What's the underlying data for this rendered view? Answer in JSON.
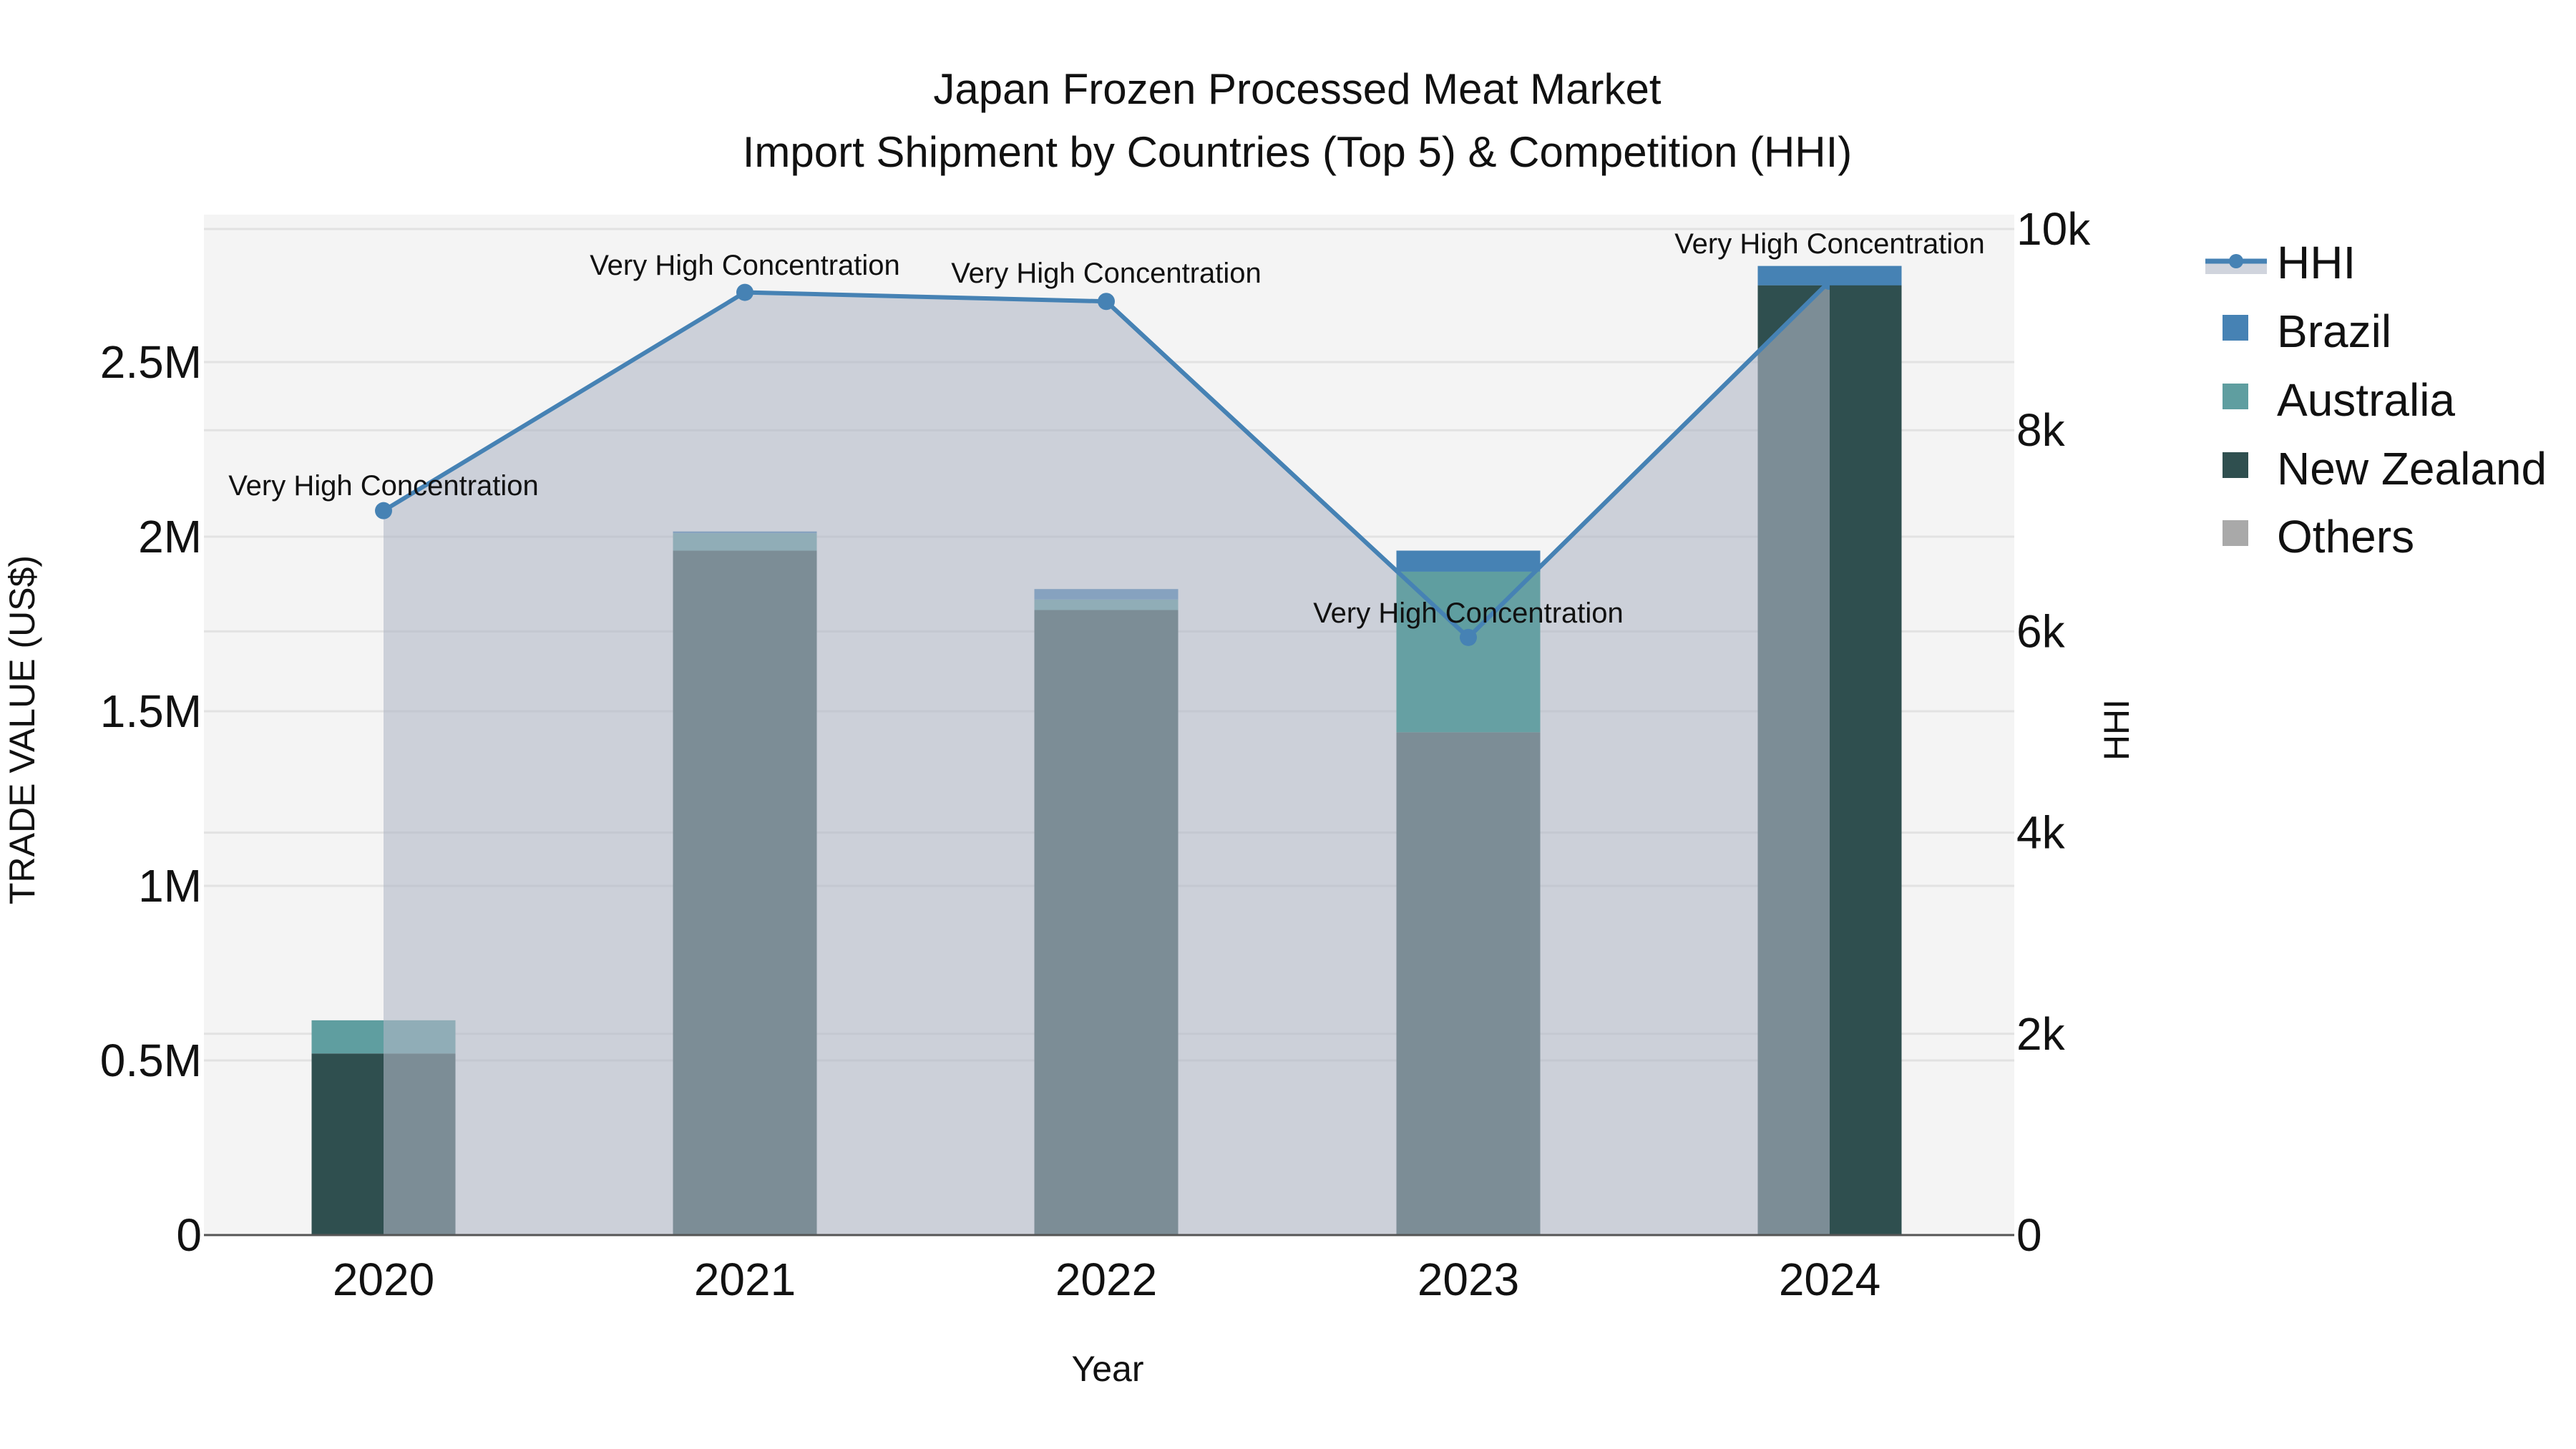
{
  "title": {
    "line1": "Japan Frozen Processed Meat Market",
    "line2": "Import Shipment by Countries (Top 5) & Competition (HHI)"
  },
  "axes": {
    "x_title": "Year",
    "y_left_title": "TRADE VALUE (US$)",
    "y_right_title": "HHI",
    "y_left_ticks": [
      "0",
      "0.5M",
      "1M",
      "1.5M",
      "2M",
      "2.5M"
    ],
    "y_right_ticks": [
      "0",
      "2k",
      "4k",
      "6k",
      "8k",
      "10k"
    ]
  },
  "legend": {
    "items": [
      {
        "label": "HHI",
        "color": "#4682b4",
        "type": "line-area"
      },
      {
        "label": "Brazil",
        "color": "#4682b4",
        "type": "bar"
      },
      {
        "label": "Australia",
        "color": "#5f9ea0",
        "type": "bar"
      },
      {
        "label": "New Zealand",
        "color": "#2f4f4f",
        "type": "bar"
      },
      {
        "label": "Others",
        "color": "#a9a9a9",
        "type": "bar"
      }
    ]
  },
  "colors": {
    "brazil": "#4682b4",
    "australia": "#5f9ea0",
    "new_zealand": "#2f4f4f",
    "others": "#a9a9a9",
    "hhi_line": "#4682b4",
    "hhi_fill": "rgba(176,184,198,0.6)",
    "plot_bg": "#f4f4f4",
    "grid": "#e2e2e2"
  },
  "chart_data": {
    "type": "bar",
    "title": "Japan Frozen Processed Meat Market — Import Shipment by Countries (Top 5) & Competition (HHI)",
    "xlabel": "Year",
    "ylabel": "TRADE VALUE (US$)",
    "y2label": "HHI",
    "categories": [
      "2020",
      "2021",
      "2022",
      "2023",
      "2024"
    ],
    "ylim": [
      0,
      2900000
    ],
    "y2lim": [
      0,
      10200
    ],
    "barmode": "stack",
    "series": [
      {
        "name": "New Zealand",
        "axis": "y",
        "values": [
          520000,
          1960000,
          1790000,
          1440000,
          2720000
        ]
      },
      {
        "name": "Australia",
        "axis": "y",
        "values": [
          95000,
          50000,
          30000,
          460000,
          0
        ]
      },
      {
        "name": "Brazil",
        "axis": "y",
        "values": [
          0,
          5000,
          30000,
          60000,
          55000
        ]
      },
      {
        "name": "Others",
        "axis": "y",
        "values": [
          0,
          0,
          0,
          0,
          0
        ]
      },
      {
        "name": "HHI",
        "axis": "y2",
        "type": "line+area",
        "values": [
          7200,
          9370,
          9280,
          5940,
          9480
        ]
      }
    ],
    "annotations": [
      {
        "x": "2020",
        "text": "Very High Concentration"
      },
      {
        "x": "2021",
        "text": "Very High Concentration"
      },
      {
        "x": "2022",
        "text": "Very High Concentration"
      },
      {
        "x": "2023",
        "text": "Very High Concentration"
      },
      {
        "x": "2024",
        "text": "Very High Concentration"
      }
    ],
    "grid": true,
    "legend_position": "right"
  }
}
